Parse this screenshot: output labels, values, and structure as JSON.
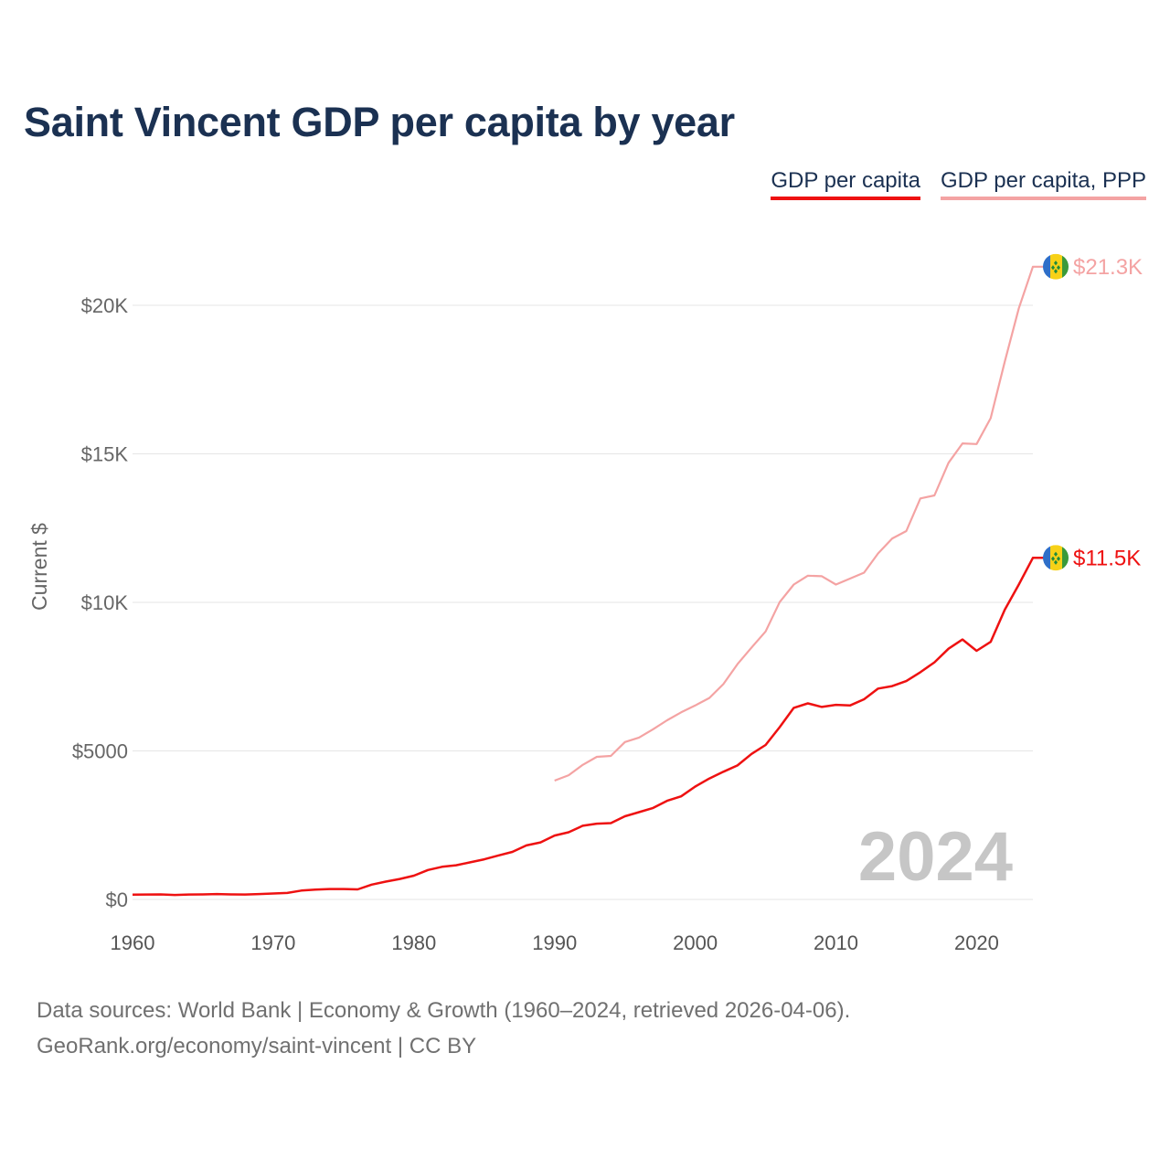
{
  "title": "Saint Vincent GDP per capita by year",
  "legend": [
    {
      "label": "GDP per capita",
      "color": "#ee1111"
    },
    {
      "label": "GDP per capita, PPP",
      "color": "#f4a3a3"
    }
  ],
  "footer": {
    "line1": "Data sources: World Bank | Economy & Growth (1960–2024, retrieved 2026-04-06).",
    "line2": "GeoRank.org/economy/saint-vincent | CC BY"
  },
  "chart_data": {
    "type": "line",
    "title": "Saint Vincent GDP per capita by year",
    "xlabel": "",
    "ylabel": "Current $",
    "xlim": [
      1960,
      2024
    ],
    "ylim": [
      0,
      21300
    ],
    "x_ticks": [
      1960,
      1970,
      1980,
      1990,
      2000,
      2010,
      2020
    ],
    "y_ticks": [
      {
        "value": 0,
        "label": "$0"
      },
      {
        "value": 5000,
        "label": "$5000"
      },
      {
        "value": 10000,
        "label": "$10K"
      },
      {
        "value": 15000,
        "label": "$15K"
      },
      {
        "value": 20000,
        "label": "$20K"
      }
    ],
    "grid": true,
    "year_watermark": "2024",
    "series": [
      {
        "name": "GDP per capita",
        "color": "#ee1111",
        "end_label": "$11.5K",
        "points": [
          [
            1960,
            160
          ],
          [
            1961,
            165
          ],
          [
            1962,
            170
          ],
          [
            1963,
            150
          ],
          [
            1964,
            165
          ],
          [
            1965,
            170
          ],
          [
            1966,
            180
          ],
          [
            1967,
            170
          ],
          [
            1968,
            165
          ],
          [
            1969,
            180
          ],
          [
            1970,
            200
          ],
          [
            1971,
            220
          ],
          [
            1972,
            300
          ],
          [
            1973,
            330
          ],
          [
            1974,
            350
          ],
          [
            1975,
            350
          ],
          [
            1976,
            340
          ],
          [
            1977,
            500
          ],
          [
            1978,
            600
          ],
          [
            1979,
            690
          ],
          [
            1980,
            800
          ],
          [
            1981,
            990
          ],
          [
            1982,
            1100
          ],
          [
            1983,
            1150
          ],
          [
            1984,
            1250
          ],
          [
            1985,
            1350
          ],
          [
            1986,
            1480
          ],
          [
            1987,
            1600
          ],
          [
            1988,
            1820
          ],
          [
            1989,
            1920
          ],
          [
            1990,
            2150
          ],
          [
            1991,
            2260
          ],
          [
            1992,
            2480
          ],
          [
            1993,
            2550
          ],
          [
            1994,
            2570
          ],
          [
            1995,
            2800
          ],
          [
            1996,
            2940
          ],
          [
            1997,
            3080
          ],
          [
            1998,
            3320
          ],
          [
            1999,
            3470
          ],
          [
            2000,
            3800
          ],
          [
            2001,
            4070
          ],
          [
            2002,
            4300
          ],
          [
            2003,
            4510
          ],
          [
            2004,
            4900
          ],
          [
            2005,
            5200
          ],
          [
            2006,
            5800
          ],
          [
            2007,
            6450
          ],
          [
            2008,
            6600
          ],
          [
            2009,
            6480
          ],
          [
            2010,
            6550
          ],
          [
            2011,
            6530
          ],
          [
            2012,
            6740
          ],
          [
            2013,
            7100
          ],
          [
            2014,
            7180
          ],
          [
            2015,
            7350
          ],
          [
            2016,
            7650
          ],
          [
            2017,
            7980
          ],
          [
            2018,
            8440
          ],
          [
            2019,
            8750
          ],
          [
            2020,
            8370
          ],
          [
            2021,
            8670
          ],
          [
            2022,
            9750
          ],
          [
            2023,
            10600
          ],
          [
            2024,
            11500
          ]
        ]
      },
      {
        "name": "GDP per capita, PPP",
        "color": "#f4a3a3",
        "end_label": "$21.3K",
        "points": [
          [
            1990,
            4000
          ],
          [
            1991,
            4180
          ],
          [
            1992,
            4530
          ],
          [
            1993,
            4800
          ],
          [
            1994,
            4830
          ],
          [
            1995,
            5300
          ],
          [
            1996,
            5450
          ],
          [
            1997,
            5730
          ],
          [
            1998,
            6030
          ],
          [
            1999,
            6300
          ],
          [
            2000,
            6530
          ],
          [
            2001,
            6780
          ],
          [
            2002,
            7250
          ],
          [
            2003,
            7920
          ],
          [
            2004,
            8480
          ],
          [
            2005,
            9020
          ],
          [
            2006,
            10010
          ],
          [
            2007,
            10600
          ],
          [
            2008,
            10900
          ],
          [
            2009,
            10880
          ],
          [
            2010,
            10600
          ],
          [
            2011,
            10800
          ],
          [
            2012,
            11000
          ],
          [
            2013,
            11650
          ],
          [
            2014,
            12150
          ],
          [
            2015,
            12400
          ],
          [
            2016,
            13500
          ],
          [
            2017,
            13600
          ],
          [
            2018,
            14700
          ],
          [
            2019,
            15350
          ],
          [
            2020,
            15330
          ],
          [
            2021,
            16200
          ],
          [
            2022,
            18100
          ],
          [
            2023,
            19900
          ],
          [
            2024,
            21300
          ]
        ]
      }
    ]
  }
}
